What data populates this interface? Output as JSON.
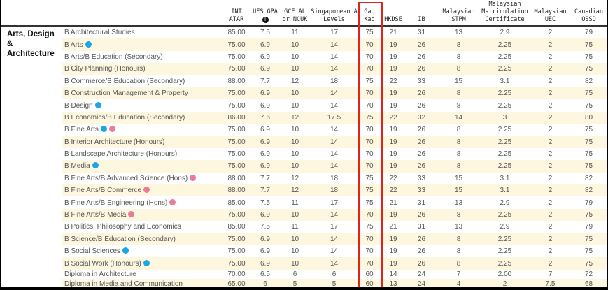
{
  "category": "Arts, Design & Architecture",
  "headers": [
    "INT ATAR",
    "UFS GPA",
    "GCE AL or NCUK",
    "Singaporean A Levels",
    "Gao Kao",
    "HKDSE",
    "IB",
    "Malaysian STPM",
    "Malaysian Matriculation Certificate",
    "Malaysian UEC",
    "Canadian OSSD"
  ],
  "header_icon": "info-icon",
  "colors": {
    "stripe": "#fdf7df",
    "highlight": "#e0241b",
    "dot_blue": "#1aa7e8",
    "dot_pink": "#ec7b9b"
  },
  "rows": [
    {
      "name": "B Architectural Studies",
      "dots": [],
      "values": [
        "85.00",
        "7.5",
        "11",
        "17",
        "75",
        "21",
        "31",
        "13",
        "2.9",
        "2",
        "79"
      ]
    },
    {
      "name": "B Arts",
      "dots": [
        "blue"
      ],
      "values": [
        "75.00",
        "6.9",
        "10",
        "14",
        "70",
        "19",
        "26",
        "8",
        "2.25",
        "2",
        "75"
      ]
    },
    {
      "name": "B Arts/B Education (Secondary)",
      "dots": [],
      "values": [
        "75.00",
        "6.9",
        "10",
        "14",
        "70",
        "19",
        "26",
        "8",
        "2.25",
        "2",
        "75"
      ]
    },
    {
      "name": "B City Planning (Honours)",
      "dots": [],
      "values": [
        "75.00",
        "6.9",
        "10",
        "14",
        "70",
        "19",
        "26",
        "8",
        "2.25",
        "2",
        "75"
      ]
    },
    {
      "name": "B Commerce/B Education (Secondary)",
      "dots": [],
      "values": [
        "88.00",
        "7.7",
        "12",
        "18",
        "75",
        "22",
        "33",
        "15",
        "3.1",
        "2",
        "82"
      ]
    },
    {
      "name": "B Construction Management & Property",
      "dots": [],
      "values": [
        "75.00",
        "6.9",
        "10",
        "14",
        "70",
        "19",
        "26",
        "8",
        "2.25",
        "2",
        "75"
      ]
    },
    {
      "name": "B Design",
      "dots": [
        "blue"
      ],
      "values": [
        "75.00",
        "6.9",
        "10",
        "14",
        "70",
        "19",
        "26",
        "8",
        "2.25",
        "2",
        "75"
      ]
    },
    {
      "name": "B Economics/B Education (Secondary)",
      "dots": [],
      "values": [
        "86.00",
        "7.6",
        "12",
        "17.5",
        "75",
        "22",
        "32",
        "14",
        "3",
        "2",
        "80"
      ]
    },
    {
      "name": "B Fine Arts",
      "dots": [
        "blue",
        "pink"
      ],
      "values": [
        "75.00",
        "6.9",
        "10",
        "14",
        "70",
        "19",
        "26",
        "8",
        "2.25",
        "2",
        "75"
      ]
    },
    {
      "name": "B Interior Architecture (Honours)",
      "dots": [],
      "values": [
        "75.00",
        "6.9",
        "10",
        "14",
        "70",
        "19",
        "26",
        "8",
        "2.25",
        "2",
        "75"
      ]
    },
    {
      "name": "B Landscape Architecture (Honours)",
      "dots": [],
      "values": [
        "75.00",
        "6.9",
        "10",
        "14",
        "70",
        "19",
        "26",
        "8",
        "2.25",
        "2",
        "75"
      ]
    },
    {
      "name": "B Media",
      "dots": [
        "blue"
      ],
      "values": [
        "75.00",
        "6.9",
        "10",
        "14",
        "70",
        "19",
        "26",
        "8",
        "2.25",
        "2",
        "75"
      ]
    },
    {
      "name": "B Fine Arts/B Advanced Science (Hons)",
      "dots": [
        "pink"
      ],
      "values": [
        "88.00",
        "7.7",
        "12",
        "18",
        "75",
        "22",
        "33",
        "15",
        "3.1",
        "2",
        "82"
      ]
    },
    {
      "name": "B Fine Arts/B Commerce",
      "dots": [
        "pink"
      ],
      "values": [
        "88.00",
        "7.7",
        "12",
        "18",
        "75",
        "22",
        "33",
        "15",
        "3.1",
        "2",
        "82"
      ]
    },
    {
      "name": "B Fine Arts/B Engineering (Hons)",
      "dots": [
        "pink"
      ],
      "values": [
        "85.00",
        "7.5",
        "11",
        "17",
        "75",
        "21",
        "31",
        "13",
        "2.9",
        "2",
        "79"
      ]
    },
    {
      "name": "B Fine Arts/B Media",
      "dots": [
        "pink"
      ],
      "values": [
        "75.00",
        "6.9",
        "10",
        "14",
        "70",
        "19",
        "26",
        "8",
        "2.25",
        "2",
        "75"
      ]
    },
    {
      "name": "B Politics, Philosophy and Economics",
      "dots": [],
      "values": [
        "85.00",
        "7.5",
        "11",
        "17",
        "75",
        "21",
        "31",
        "13",
        "2.9",
        "2",
        "79"
      ]
    },
    {
      "name": "B Science/B Education (Secondary)",
      "dots": [],
      "values": [
        "75.00",
        "6.9",
        "10",
        "14",
        "70",
        "19",
        "26",
        "8",
        "2.25",
        "2",
        "75"
      ]
    },
    {
      "name": "B Social Sciences",
      "dots": [
        "blue"
      ],
      "values": [
        "75.00",
        "6.9",
        "10",
        "14",
        "70",
        "19",
        "26",
        "8",
        "2.25",
        "2",
        "75"
      ]
    },
    {
      "name": "B Social Work (Honours)",
      "dots": [
        "blue"
      ],
      "values": [
        "75.00",
        "6.9",
        "10",
        "14",
        "70",
        "19",
        "26",
        "8",
        "2.25",
        "2",
        "75"
      ]
    },
    {
      "name": "Diploma in Architecture",
      "dots": [],
      "values": [
        "70.00",
        "6.5",
        "6",
        "6",
        "60",
        "14",
        "24",
        "7",
        "2.00",
        "7",
        "72"
      ]
    },
    {
      "name": "Diploma in Media and Communication",
      "dots": [],
      "values": [
        "65.00",
        "6",
        "5",
        "5",
        "60",
        "13",
        "24",
        "4",
        "2",
        "7.5",
        "68"
      ]
    }
  ]
}
